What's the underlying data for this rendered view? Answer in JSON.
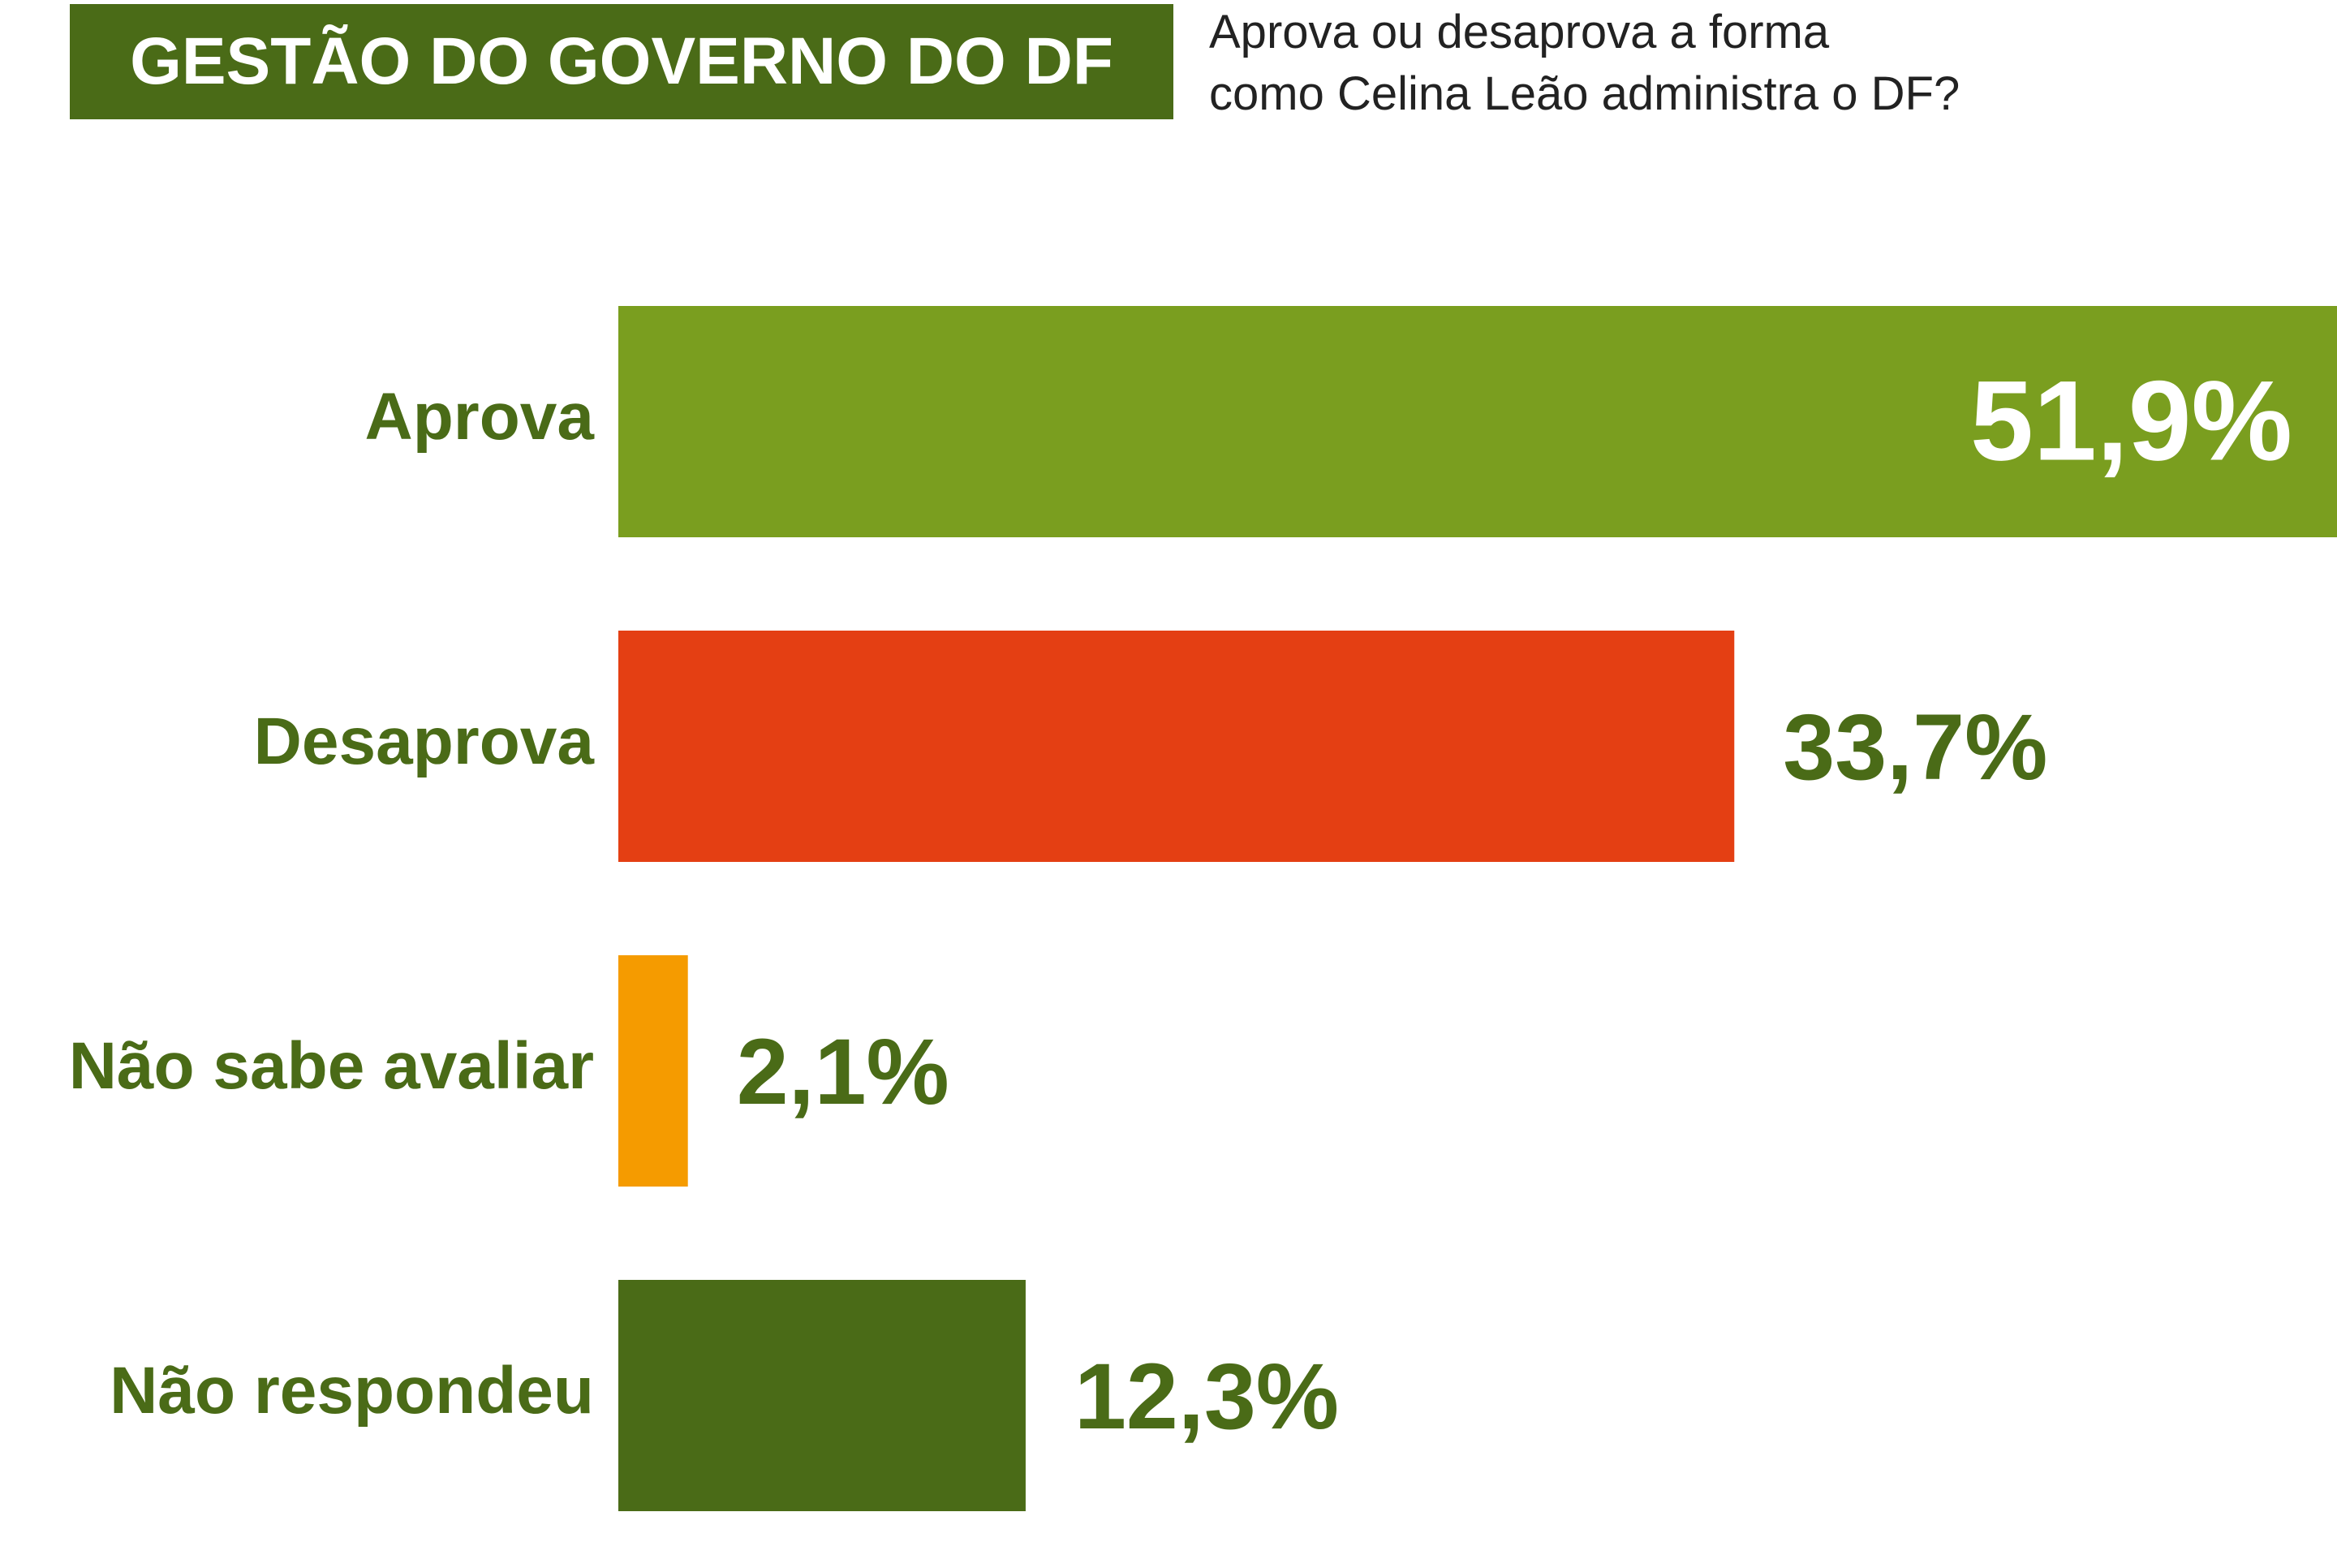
{
  "chart_data": {
    "type": "hbar",
    "title": "GESTÃO DO GOVERNO DO DF",
    "subtitle": "Aprova ou desaprova a forma\ncomo Celina Leão administra o DF?",
    "categories": [
      "Aprova",
      "Desaprova",
      "Não sabe avaliar",
      "Não respondeu"
    ],
    "values": [
      51.9,
      33.7,
      2.1,
      12.3
    ],
    "value_labels": [
      "51,9%",
      "33,7%",
      "2,1%",
      "12,3%"
    ],
    "colors": [
      "#7a9e1f",
      "#e43f13",
      "#f59b00",
      "#4a6b17"
    ]
  }
}
